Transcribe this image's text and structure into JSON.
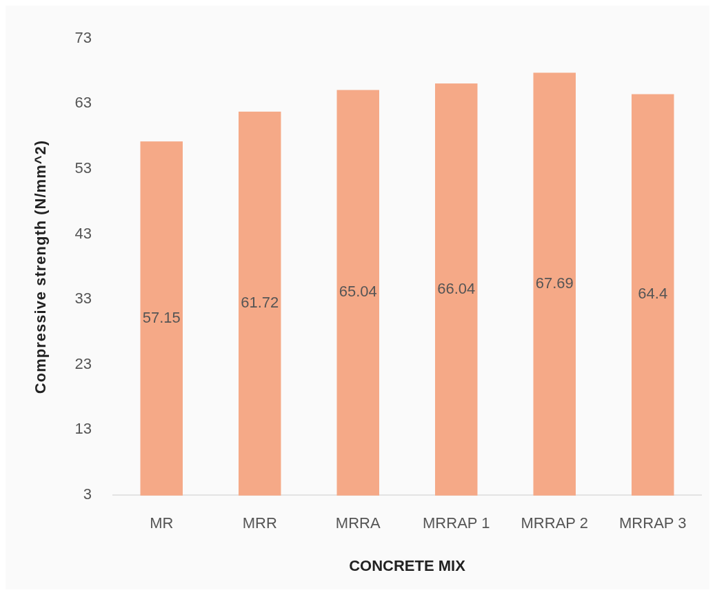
{
  "chart_data": {
    "type": "bar",
    "xlabel": "CONCRETE MIX",
    "ylabel": "Compressive strength (N/mm^2)",
    "categories": [
      "MR",
      "MRR",
      "MRRA",
      "MRRAP 1",
      "MRRAP 2",
      "MRRAP 3"
    ],
    "values": [
      57.15,
      61.72,
      65.04,
      66.04,
      67.69,
      64.4
    ],
    "color": "#f5a987",
    "ylim": [
      3,
      73
    ],
    "yticks": [
      3,
      13,
      23,
      33,
      43,
      53,
      63,
      73
    ],
    "data_labels": true,
    "grid": false
  }
}
